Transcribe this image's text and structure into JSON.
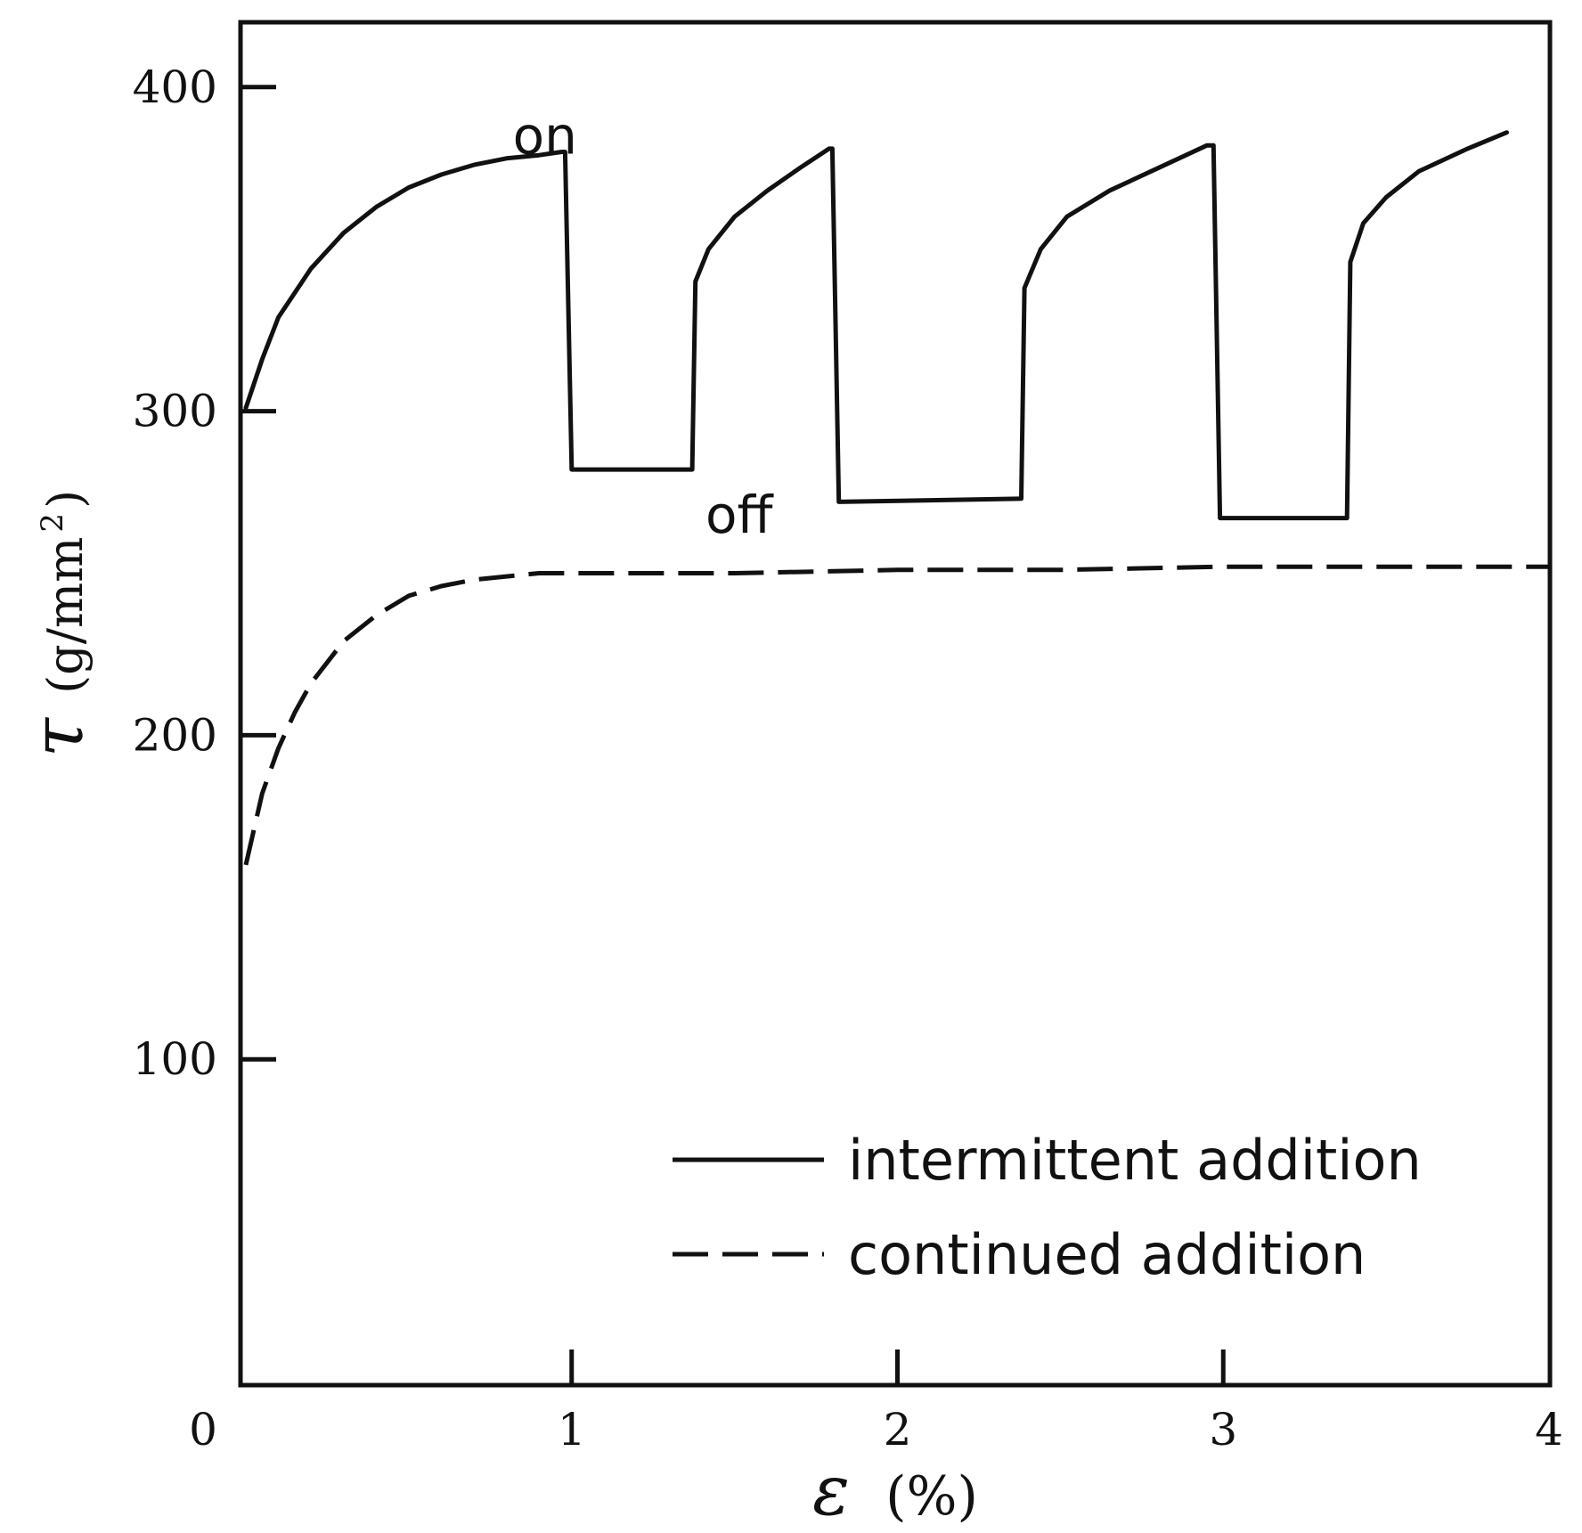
{
  "chart_data": {
    "type": "line",
    "xlabel_symbol": "ε",
    "xlabel_unit": "(%)",
    "ylabel_symbol": "τ",
    "ylabel_unit": "(g/mm",
    "ylabel_unit_sup": "2",
    "ylabel_unit_close": ")",
    "xlim": [
      0,
      4
    ],
    "ylim": [
      0,
      420
    ],
    "origin_label": "0",
    "x_ticks": [
      1,
      2,
      3,
      4
    ],
    "x_tick_labels": [
      "1",
      "2",
      "3",
      "4"
    ],
    "y_ticks": [
      100,
      200,
      300,
      400
    ],
    "y_tick_labels": [
      "100",
      "200",
      "300",
      "400"
    ],
    "grid": false,
    "legend_position": "bottom-right",
    "annotations": [
      {
        "text": "on",
        "x": 1.0,
        "y": 385
      },
      {
        "text": "off",
        "x": 1.35,
        "y": 268
      }
    ],
    "series": [
      {
        "name": "intermittent addition",
        "style": "solid",
        "x": [
          0,
          0.05,
          0.1,
          0.2,
          0.3,
          0.4,
          0.5,
          0.6,
          0.7,
          0.8,
          0.9,
          0.97,
          0.98,
          1.0,
          1.37,
          1.38,
          1.42,
          1.5,
          1.6,
          1.7,
          1.79,
          1.8,
          1.82,
          2.38,
          2.39,
          2.44,
          2.52,
          2.65,
          2.8,
          2.95,
          2.97,
          2.99,
          3.38,
          3.39,
          3.43,
          3.5,
          3.6,
          3.75,
          3.87
        ],
        "y": [
          301,
          316,
          329,
          344,
          355,
          363,
          369,
          373,
          376,
          378,
          379,
          380,
          380,
          282,
          282,
          340,
          350,
          360,
          368,
          375,
          381,
          381,
          272,
          273,
          338,
          350,
          360,
          368,
          375,
          382,
          382,
          267,
          267,
          346,
          358,
          366,
          374,
          381,
          386
        ]
      },
      {
        "name": "continued addition",
        "style": "dashed",
        "x": [
          0,
          0.05,
          0.1,
          0.15,
          0.2,
          0.3,
          0.4,
          0.5,
          0.6,
          0.7,
          0.8,
          0.9,
          1.0,
          1.5,
          2.0,
          2.5,
          3.0,
          3.5,
          4.0
        ],
        "y": [
          160,
          182,
          196,
          207,
          216,
          229,
          237,
          243,
          246,
          248,
          249,
          250,
          250,
          250,
          251,
          251,
          252,
          252,
          252
        ]
      }
    ]
  }
}
